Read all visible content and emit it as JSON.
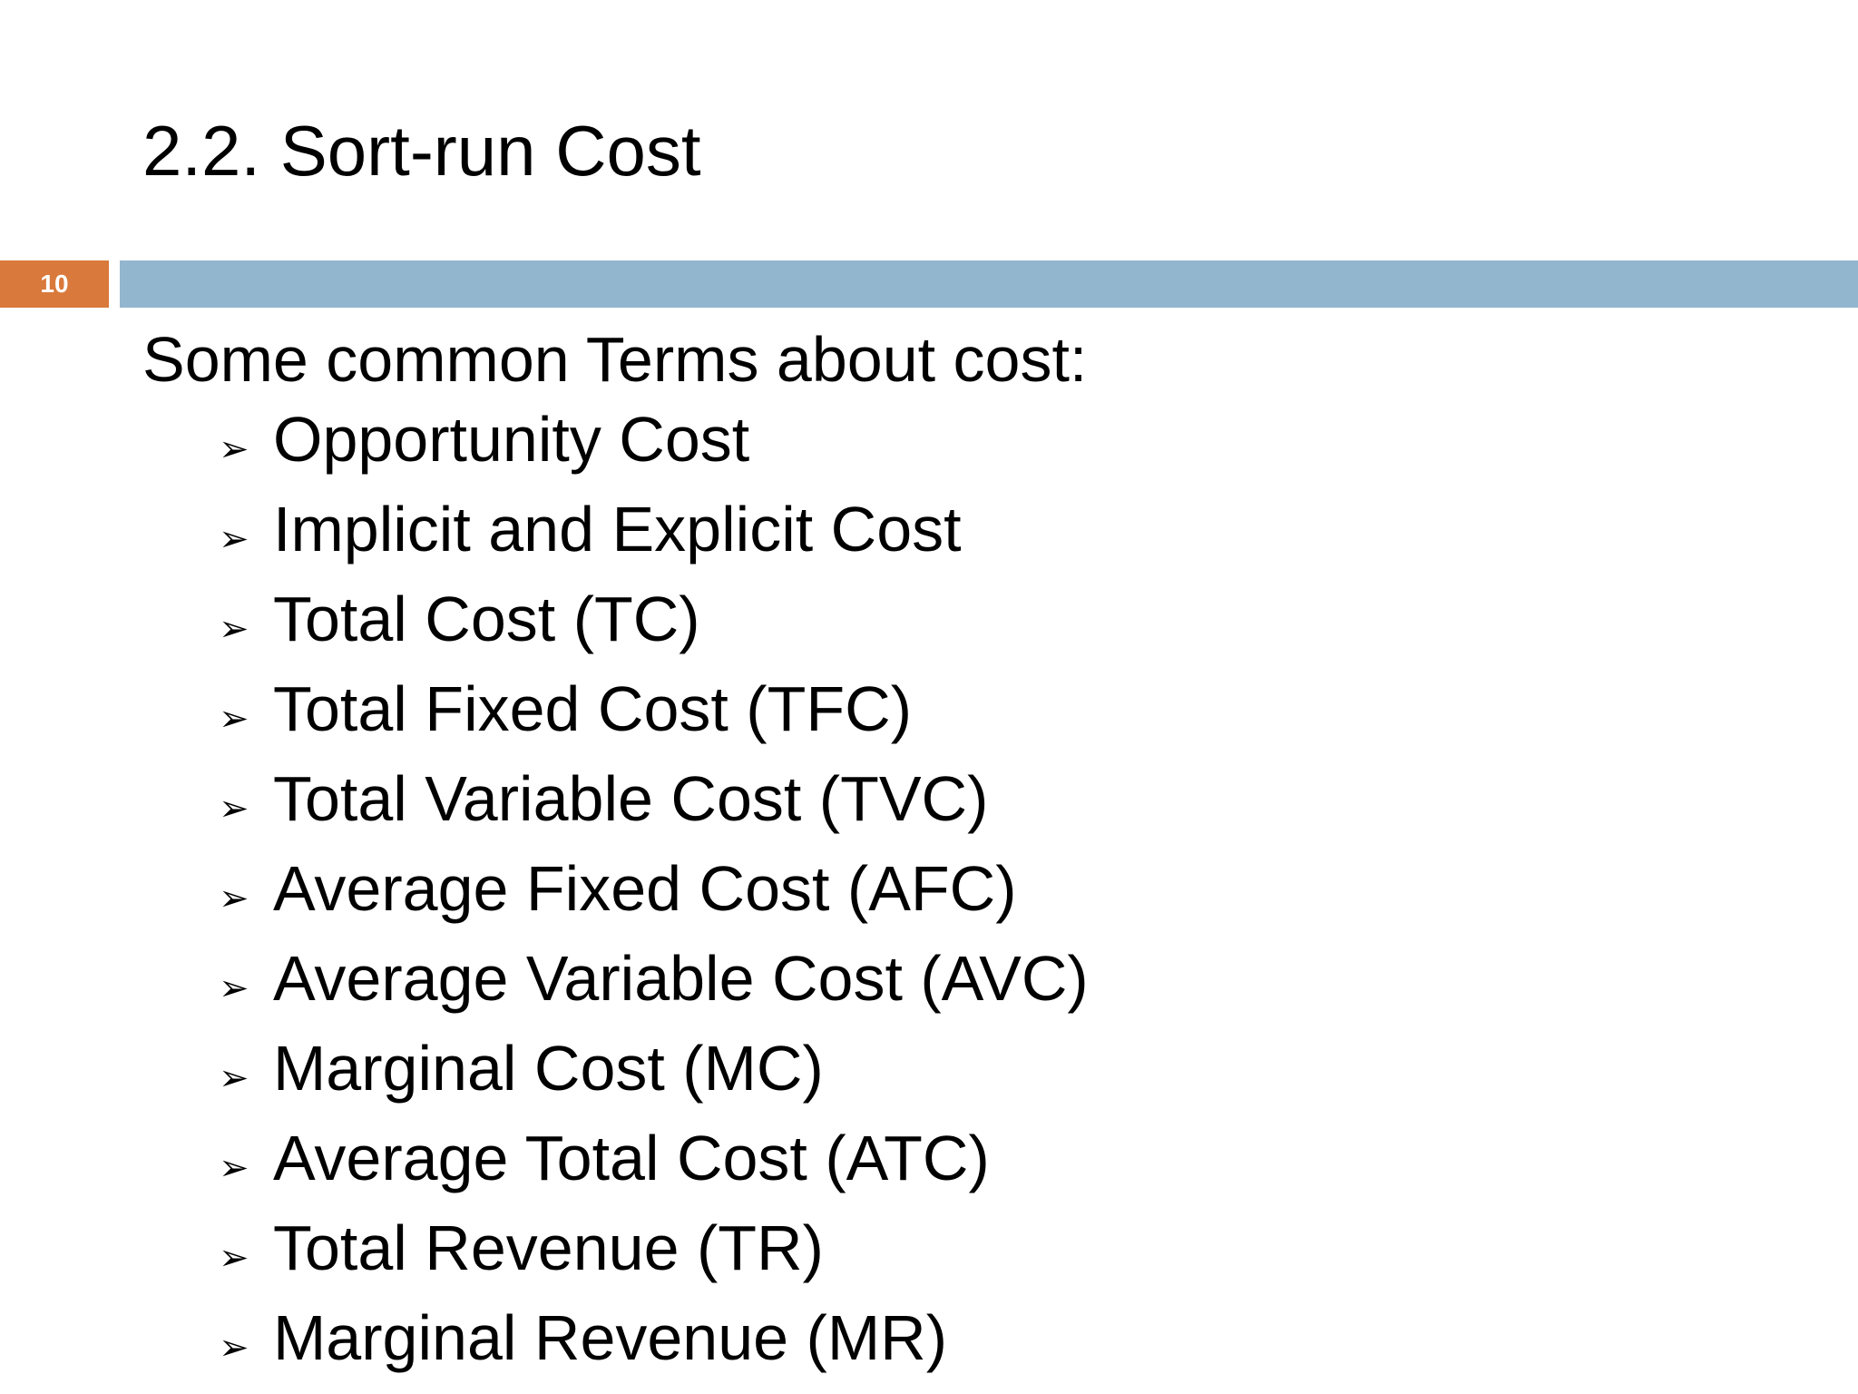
{
  "slide": {
    "title": "2.2. Sort-run Cost",
    "number": "10",
    "colors": {
      "number_badge": "#d9793b",
      "title_bar": "#93b6cf"
    }
  },
  "content": {
    "intro": "Some common Terms about cost:",
    "bullet_icon": "arrowhead-bullet-icon",
    "bullet_glyph": "➢",
    "terms": [
      "Opportunity Cost",
      "Implicit and Explicit Cost",
      "Total Cost (TC)",
      "Total Fixed Cost (TFC)",
      "Total Variable Cost (TVC)",
      "Average Fixed Cost (AFC)",
      "Average Variable Cost (AVC)",
      "Marginal Cost (MC)",
      "Average Total Cost (ATC)",
      "Total Revenue (TR)",
      "Marginal Revenue (MR)"
    ]
  }
}
